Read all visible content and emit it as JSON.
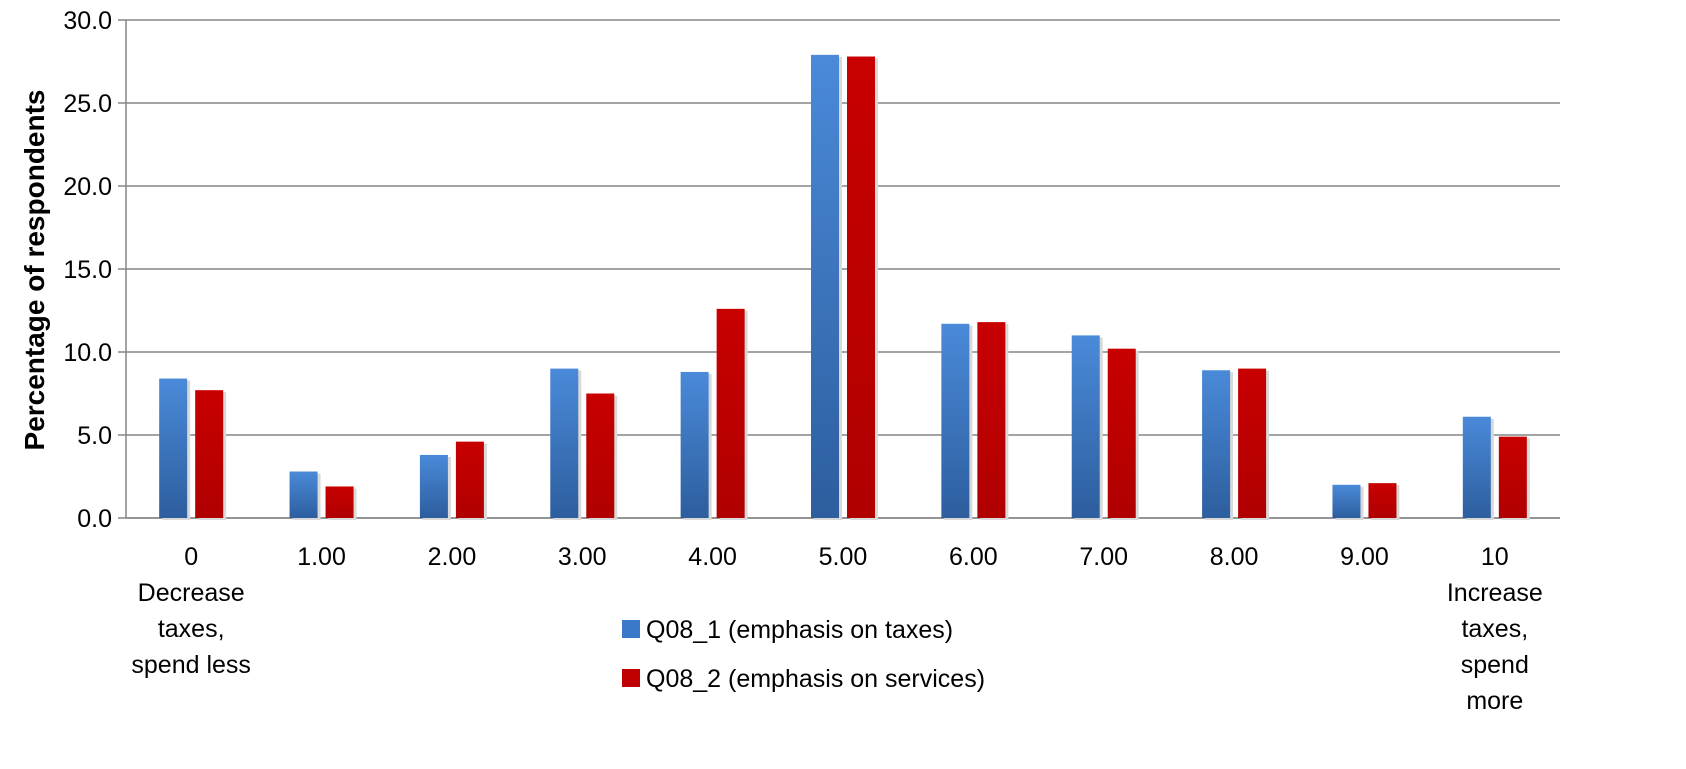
{
  "chart_data": {
    "type": "bar",
    "title": "",
    "xlabel": "",
    "ylabel": "Percentage of respondents",
    "ylim": [
      0,
      30
    ],
    "yticks": [
      "0.0",
      "5.0",
      "10.0",
      "15.0",
      "20.0",
      "25.0",
      "30.0"
    ],
    "grid": true,
    "legend_position": "bottom-center",
    "categories": [
      "0",
      "1.00",
      "2.00",
      "3.00",
      "4.00",
      "5.00",
      "6.00",
      "7.00",
      "8.00",
      "9.00",
      "10"
    ],
    "category_notes": [
      [
        "Decrease",
        "taxes,",
        "spend less"
      ],
      [],
      [],
      [],
      [],
      [],
      [],
      [],
      [],
      [],
      [
        "Increase",
        "taxes,",
        "spend",
        "more"
      ]
    ],
    "series": [
      {
        "name": "Q08_1 (emphasis on taxes)",
        "color": "#3A78C9",
        "values": [
          8.4,
          2.8,
          3.8,
          9.0,
          8.8,
          27.9,
          11.7,
          11.0,
          8.9,
          2.0,
          6.1
        ]
      },
      {
        "name": "Q08_2 (emphasis on services)",
        "color": "#C00000",
        "values": [
          7.7,
          1.9,
          4.6,
          7.5,
          12.6,
          27.8,
          11.8,
          10.2,
          9.0,
          2.1,
          4.9
        ]
      }
    ]
  }
}
